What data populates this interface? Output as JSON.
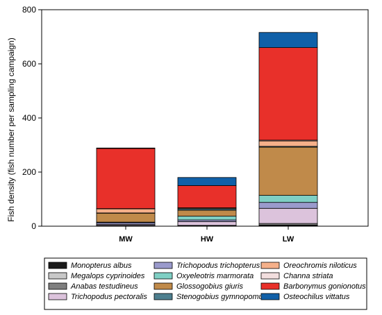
{
  "chart_data": {
    "type": "bar",
    "stacked": true,
    "categories": [
      "MW",
      "HW",
      "LW"
    ],
    "ylabel": "Fish density (fish number per sampling campaign)",
    "xlabel": "",
    "ylim": [
      0,
      800
    ],
    "yticks": [
      0,
      200,
      400,
      600,
      800
    ],
    "grid": false,
    "legend_position": "bottom",
    "series": [
      {
        "name": "Monopterus albus",
        "color": "#1a1a1a",
        "values": [
          1,
          1,
          2
        ]
      },
      {
        "name": "Megalops cyprinoides",
        "color": "#c8c8c8",
        "values": [
          1,
          1,
          2
        ]
      },
      {
        "name": "Anabas testudineus",
        "color": "#7f7f7f",
        "values": [
          1,
          1,
          6
        ]
      },
      {
        "name": "Trichopodus pectoralis",
        "color": "#dcc3dc",
        "values": [
          4,
          14,
          56
        ]
      },
      {
        "name": "Trichopodus trichopterus",
        "color": "#9a9acc",
        "values": [
          6,
          6,
          22
        ]
      },
      {
        "name": "Oxyeleotris marmorata",
        "color": "#7fcfc4",
        "values": [
          2,
          14,
          26
        ]
      },
      {
        "name": "Glossogobius giuris",
        "color": "#c08a4a",
        "values": [
          33,
          22,
          178
        ]
      },
      {
        "name": "Stenogobius gymnopomus",
        "color": "#4d7f8f",
        "values": [
          1,
          5,
          3
        ]
      },
      {
        "name": "Oreochromis niloticus",
        "color": "#f5b08a",
        "values": [
          15,
          3,
          20
        ]
      },
      {
        "name": "Channa striata",
        "color": "#f2dede",
        "values": [
          1,
          1,
          3
        ]
      },
      {
        "name": "Barbonymus gonionotus",
        "color": "#e8302a",
        "values": [
          222,
          82,
          342
        ]
      },
      {
        "name": "Osteochilus vittatus",
        "color": "#1060a8",
        "values": [
          2,
          30,
          56
        ]
      }
    ],
    "legend_layout": [
      [
        "Monopterus albus",
        "Trichopodus trichopterus",
        "Oreochromis niloticus"
      ],
      [
        "Megalops cyprinoides",
        "Oxyeleotris marmorata",
        "Channa striata"
      ],
      [
        "Anabas testudineus",
        "Glossogobius giuris",
        "Barbonymus gonionotus"
      ],
      [
        "Trichopodus pectoralis",
        "Stenogobius gymnopomus",
        "Osteochilus vittatus"
      ]
    ]
  }
}
